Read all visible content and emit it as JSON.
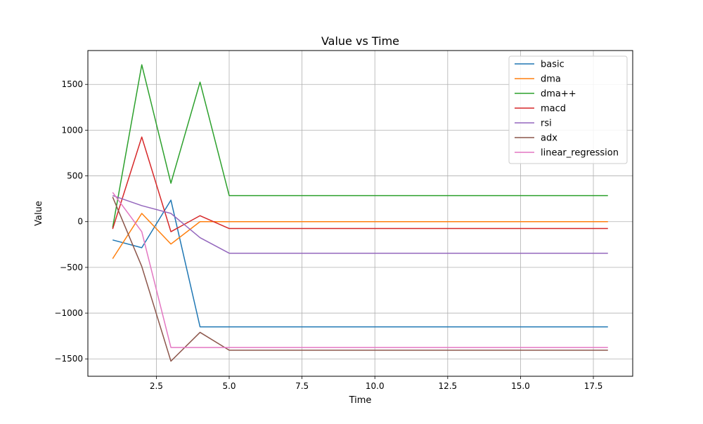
{
  "chart_data": {
    "type": "line",
    "title": "Value vs Time",
    "xlabel": "Time",
    "ylabel": "Value",
    "xlim": [
      0.15,
      18.85
    ],
    "ylim": [
      -1690,
      1870
    ],
    "xticks": [
      2.5,
      5.0,
      7.5,
      10.0,
      12.5,
      15.0,
      17.5
    ],
    "xtick_labels": [
      "2.5",
      "5.0",
      "7.5",
      "10.0",
      "12.5",
      "15.0",
      "17.5"
    ],
    "yticks": [
      -1500,
      -1000,
      -500,
      0,
      500,
      1000,
      1500
    ],
    "ytick_labels": [
      "−1500",
      "−1000",
      "−500",
      "0",
      "500",
      "1000",
      "1500"
    ],
    "grid": true,
    "legend_position": "top-right",
    "x": [
      1,
      2,
      3,
      4,
      5,
      6,
      7,
      8,
      9,
      10,
      11,
      12,
      13,
      14,
      15,
      16,
      17,
      18
    ],
    "series": [
      {
        "name": "basic",
        "color": "#1f77b4",
        "values": [
          -200,
          -285,
          235,
          -1150,
          -1150,
          -1150,
          -1150,
          -1150,
          -1150,
          -1150,
          -1150,
          -1150,
          -1150,
          -1150,
          -1150,
          -1150,
          -1150,
          -1150
        ]
      },
      {
        "name": "dma",
        "color": "#ff7f0e",
        "values": [
          -405,
          90,
          -245,
          0,
          0,
          0,
          0,
          0,
          0,
          0,
          0,
          0,
          0,
          0,
          0,
          0,
          0,
          0
        ]
      },
      {
        "name": "dma++",
        "color": "#2ca02c",
        "values": [
          -65,
          1715,
          420,
          1525,
          285,
          285,
          285,
          285,
          285,
          285,
          285,
          285,
          285,
          285,
          285,
          285,
          285,
          285
        ]
      },
      {
        "name": "macd",
        "color": "#d62728",
        "values": [
          -80,
          925,
          -110,
          65,
          -75,
          -75,
          -75,
          -75,
          -75,
          -75,
          -75,
          -75,
          -75,
          -75,
          -75,
          -75,
          -75,
          -75
        ]
      },
      {
        "name": "rsi",
        "color": "#9467bd",
        "values": [
          285,
          175,
          90,
          -175,
          -345,
          -345,
          -345,
          -345,
          -345,
          -345,
          -345,
          -345,
          -345,
          -345,
          -345,
          -345,
          -345,
          -345
        ]
      },
      {
        "name": "adx",
        "color": "#8c564b",
        "values": [
          270,
          -490,
          -1525,
          -1210,
          -1405,
          -1405,
          -1405,
          -1405,
          -1405,
          -1405,
          -1405,
          -1405,
          -1405,
          -1405,
          -1405,
          -1405,
          -1405,
          -1405
        ]
      },
      {
        "name": "linear_regression",
        "color": "#e377c2",
        "values": [
          320,
          -110,
          -1375,
          -1375,
          -1375,
          -1375,
          -1375,
          -1375,
          -1375,
          -1375,
          -1375,
          -1375,
          -1375,
          -1375,
          -1375,
          -1375,
          -1375,
          -1375
        ]
      }
    ]
  }
}
